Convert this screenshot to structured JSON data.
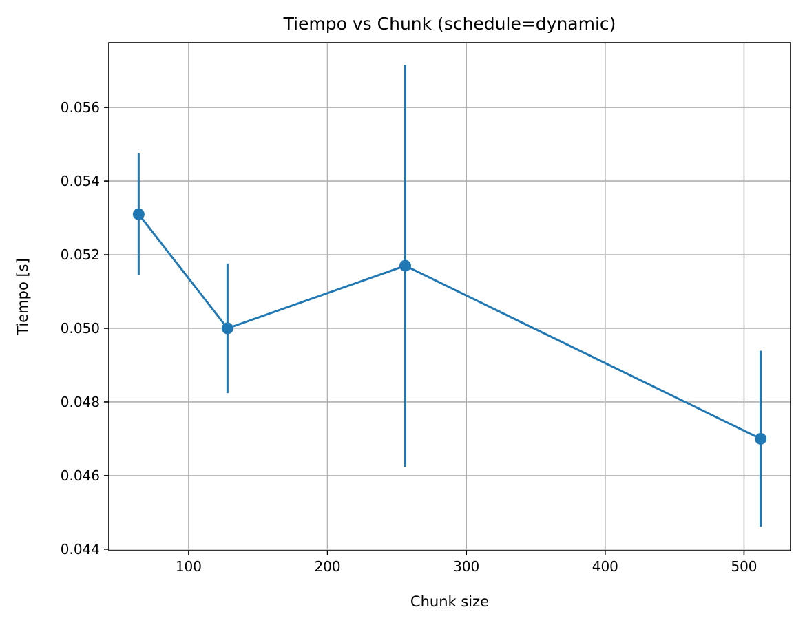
{
  "chart_data": {
    "type": "line",
    "title": "Tiempo vs Chunk (schedule=dynamic)",
    "xlabel": "Chunk size",
    "ylabel": "Tiempo [s]",
    "xlim": [
      42.5,
      533.5
    ],
    "ylim": [
      0.04396,
      0.05776
    ],
    "xticks": [
      100,
      200,
      300,
      400,
      500
    ],
    "xtick_labels": [
      "100",
      "200",
      "300",
      "400",
      "500"
    ],
    "yticks": [
      0.044,
      0.046,
      0.048,
      0.05,
      0.052,
      0.054,
      0.056
    ],
    "ytick_labels": [
      "0.044",
      "0.046",
      "0.048",
      "0.050",
      "0.052",
      "0.054",
      "0.056"
    ],
    "grid": true,
    "series": [
      {
        "x": [
          64,
          128,
          256,
          512
        ],
        "y": [
          0.0531,
          0.05,
          0.0517,
          0.047
        ],
        "error": [
          0.00166,
          0.00176,
          0.00546,
          0.00239
        ],
        "color": "#1f77b4",
        "marker": "circle"
      }
    ]
  }
}
